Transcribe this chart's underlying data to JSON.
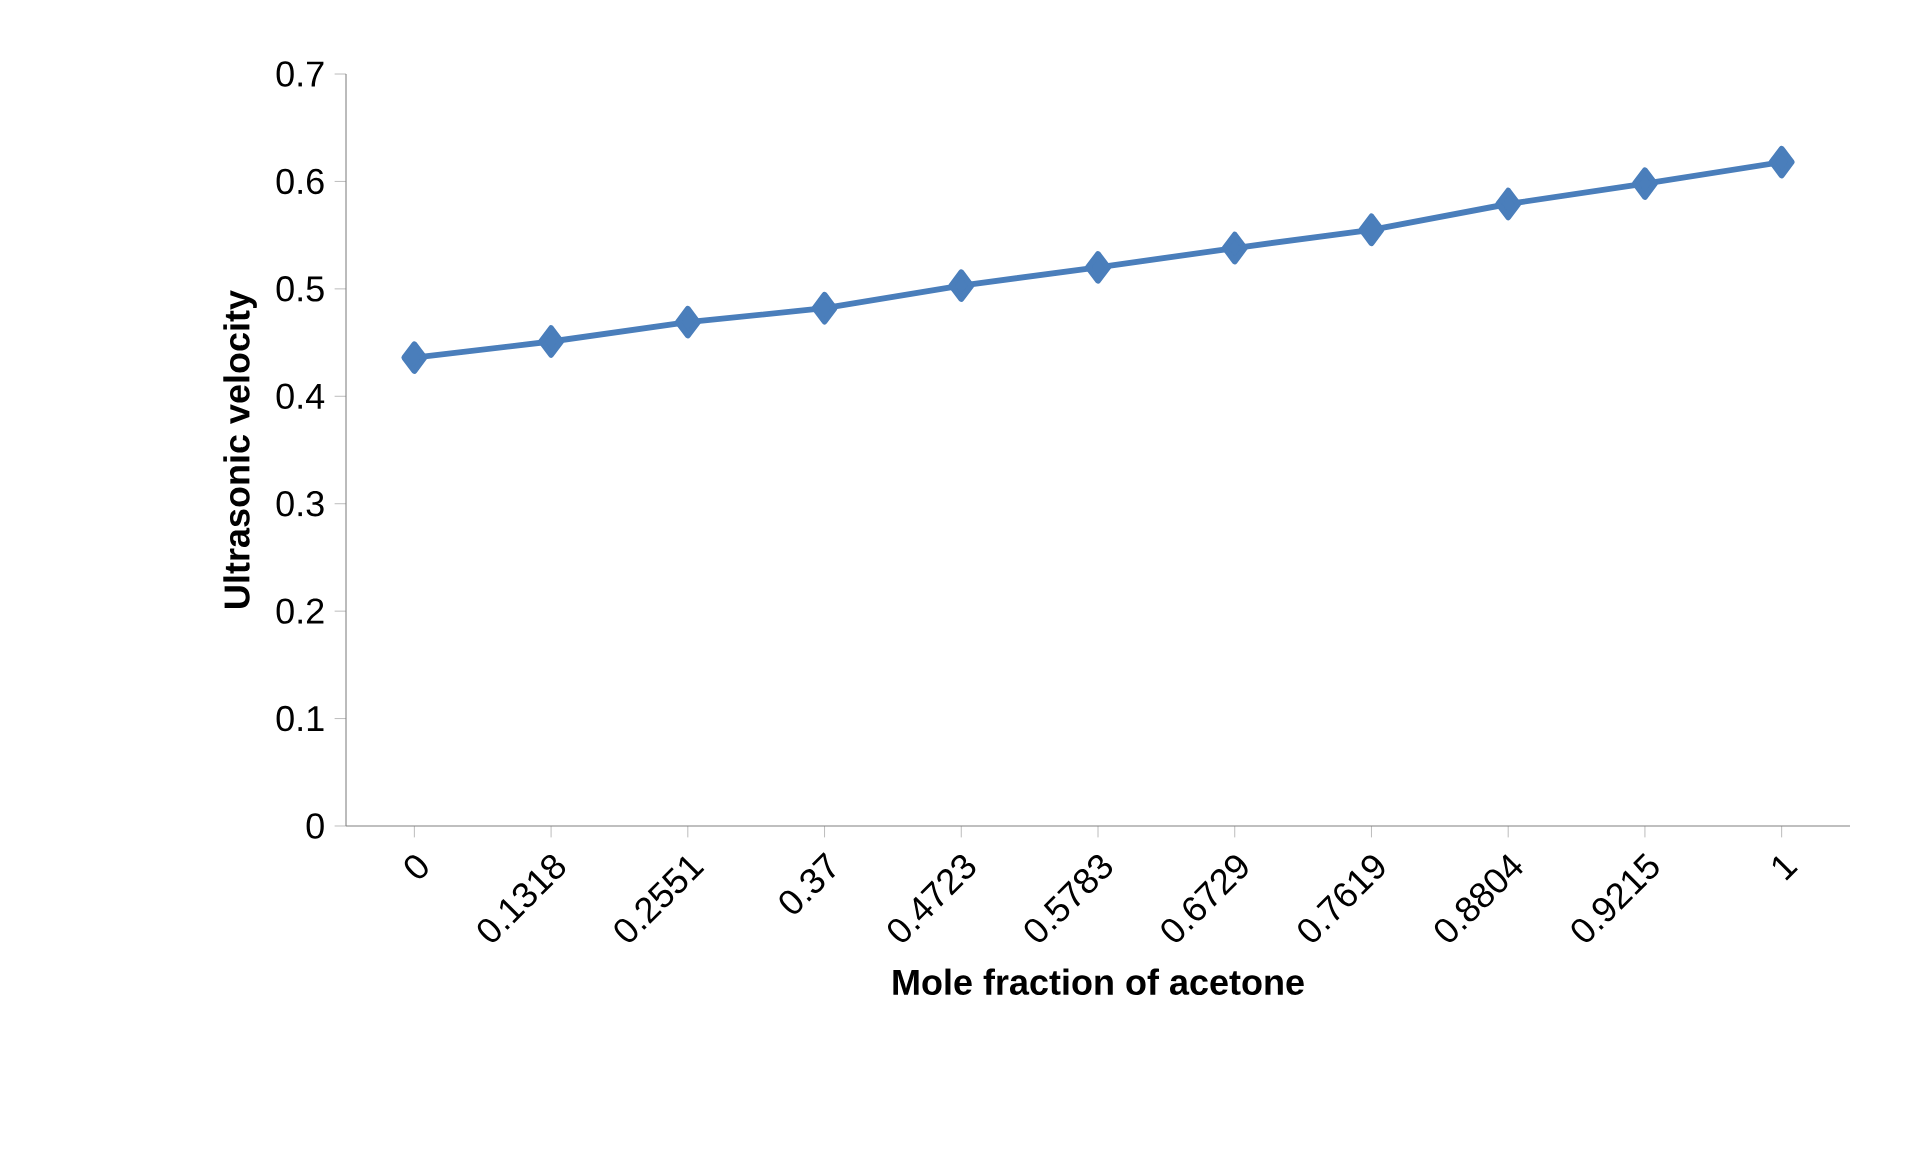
{
  "chart_data": {
    "type": "line",
    "xlabel": "Mole fraction of acetone",
    "ylabel": "Ultrasonic velocity",
    "categories": [
      "0",
      "0.1318",
      "0.2551",
      "0.37",
      "0.4723",
      "0.5783",
      "0.6729",
      "0.7619",
      "0.8804",
      "0.9215",
      "1"
    ],
    "series": [
      {
        "color": "#4a7ebb",
        "values": [
          0.436,
          0.451,
          0.469,
          0.482,
          0.503,
          0.52,
          0.538,
          0.555,
          0.579,
          0.598,
          0.618
        ]
      }
    ],
    "ylim": [
      0,
      0.7
    ],
    "yticks": [
      0,
      0.1,
      0.2,
      0.3,
      0.4,
      0.5,
      0.6,
      0.7
    ],
    "marker": "diamond",
    "line_style": "solid",
    "grid": false
  }
}
